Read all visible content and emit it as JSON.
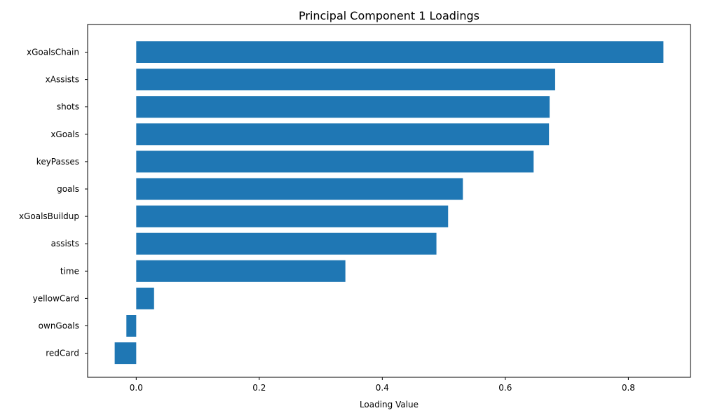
{
  "chart_data": {
    "type": "bar",
    "orientation": "horizontal",
    "title": "Principal Component 1 Loadings",
    "xlabel": "Loading Value",
    "ylabel": "",
    "categories": [
      "xGoalsChain",
      "xAssists",
      "shots",
      "xGoals",
      "keyPasses",
      "goals",
      "xGoalsBuildup",
      "assists",
      "time",
      "yellowCard",
      "ownGoals",
      "redCard"
    ],
    "values": [
      0.857,
      0.681,
      0.672,
      0.671,
      0.646,
      0.531,
      0.507,
      0.488,
      0.34,
      0.029,
      -0.016,
      -0.035
    ],
    "xlim": [
      -0.079,
      0.901
    ],
    "xticks": [
      0.0,
      0.2,
      0.4,
      0.6,
      0.8
    ],
    "xtick_labels": [
      "0.0",
      "0.2",
      "0.4",
      "0.6",
      "0.8"
    ],
    "grid": false,
    "bar_color": "#1f77b4"
  }
}
